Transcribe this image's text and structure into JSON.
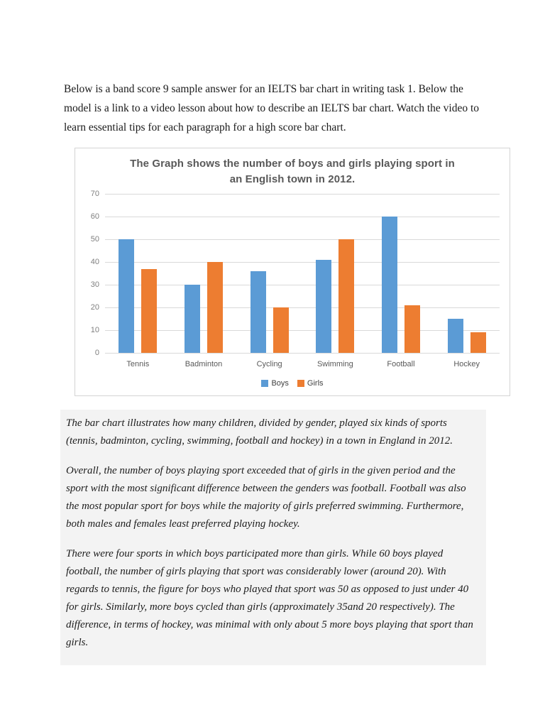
{
  "intro": {
    "text": "Below is a band score 9 sample answer for an IELTS bar chart in writing task 1. Below the model is a link to a video lesson about how to describe an IELTS bar chart. Watch the video to learn essential tips for each paragraph for a high score bar chart."
  },
  "chart_data": {
    "type": "bar",
    "title": "The Graph shows the number of boys and girls playing sport in an English town in 2012.",
    "categories": [
      "Tennis",
      "Badminton",
      "Cycling",
      "Swimming",
      "Football",
      "Hockey"
    ],
    "series": [
      {
        "name": "Boys",
        "color": "#5B9BD5",
        "values": [
          50,
          30,
          36,
          41,
          60,
          15
        ]
      },
      {
        "name": "Girls",
        "color": "#ED7D31",
        "values": [
          37,
          40,
          20,
          50,
          21,
          9
        ]
      }
    ],
    "xlabel": "",
    "ylabel": "",
    "ylim": [
      0,
      70
    ],
    "ytick_step": 10,
    "grid": true,
    "legend_position": "bottom"
  },
  "essay": {
    "paragraphs": [
      "The bar chart illustrates how many children, divided by gender, played six kinds of sports (tennis, badminton, cycling, swimming, football and hockey) in a town in England in 2012.",
      "Overall, the number of boys playing sport exceeded that of girls in the given period and the sport with the most significant difference between the genders was football. Football was also the most popular sport for boys while the majority of girls preferred swimming. Furthermore, both males and females least preferred playing hockey.",
      "There were four sports in which boys participated more than girls. While 60 boys played football, the number of girls playing that sport was considerably lower (around 20).  With regards to tennis, the figure for boys who played that sport was 50 as opposed to just under 40 for girls. Similarly, more boys cycled than girls (approximately 35and 20 respectively). The difference, in terms of hockey, was minimal with only about 5 more boys playing that sport than girls."
    ]
  }
}
